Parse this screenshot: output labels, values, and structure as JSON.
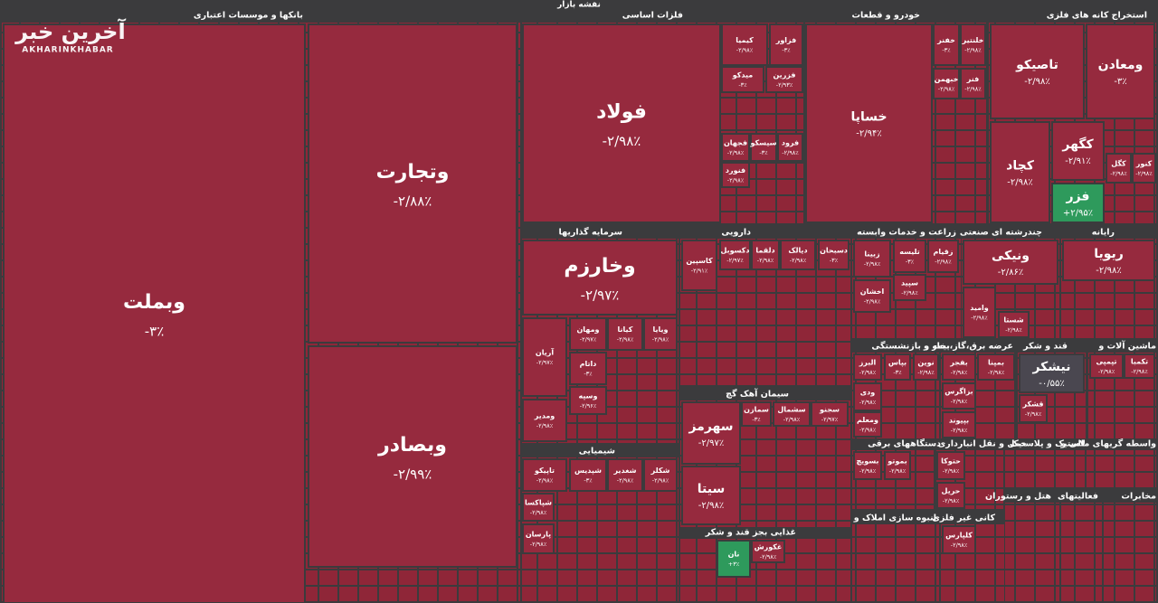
{
  "title": "نقشه بازار",
  "watermark": {
    "name": "آخرین خبر",
    "latin": "AKHARINKHABAR"
  },
  "sectors": [
    {
      "name": "بانکها و موسسات اعتباری",
      "tiles": [
        {
          "name": "وبملت",
          "change": "-۳٪"
        },
        {
          "name": "وتجارت",
          "change": "-۲/۸۸٪"
        },
        {
          "name": "وبصادر",
          "change": "-۲/۹۹٪"
        }
      ]
    },
    {
      "name": "فلزات اساسی",
      "tiles": [
        {
          "name": "فولاد",
          "change": "-۲/۹۸٪"
        },
        {
          "name": "کیمیا",
          "change": "-۲/۹۸٪"
        },
        {
          "name": "فزاور",
          "change": "-۳٪"
        },
        {
          "name": "میدکو",
          "change": "-۳٪"
        },
        {
          "name": "فزرین",
          "change": "-۲/۹۳٪"
        },
        {
          "name": "فجهان",
          "change": "-۲/۹۸٪"
        },
        {
          "name": "سیسکو",
          "change": "-۳٪"
        },
        {
          "name": "فرود",
          "change": "-۲/۹۸٪"
        },
        {
          "name": "فنورد",
          "change": "-۲/۹۸٪"
        }
      ]
    },
    {
      "name": "خودرو و قطعات",
      "tiles": [
        {
          "name": "خساپا",
          "change": "-۲/۹۴٪"
        },
        {
          "name": "خفنر",
          "change": "-۳٪"
        },
        {
          "name": "خلنتیر",
          "change": "-۲/۹۸٪"
        },
        {
          "name": "خبهمن",
          "change": "-۲/۹۸٪"
        },
        {
          "name": "فنر",
          "change": "-۲/۹۸٪"
        }
      ]
    },
    {
      "name": "استخراج کانه های فلزی",
      "tiles": [
        {
          "name": "تاصیکو",
          "change": "-۲/۹۸٪"
        },
        {
          "name": "ومعادن",
          "change": "-۳٪"
        },
        {
          "name": "کچاد",
          "change": "-۲/۹۸٪"
        },
        {
          "name": "کگهر",
          "change": "-۲/۹۱٪"
        },
        {
          "name": "فزر",
          "change": "+۲/۹۵٪",
          "color": "#2e9a5c"
        },
        {
          "name": "کگل",
          "change": "-۲/۹۸٪"
        },
        {
          "name": "کنور",
          "change": "-۲/۹۸٪"
        }
      ]
    },
    {
      "name": "سرمایه گذاریها",
      "tiles": [
        {
          "name": "وخارزم",
          "change": "-۲/۹۷٪"
        },
        {
          "name": "آریان",
          "change": "-۲/۹۷٪"
        },
        {
          "name": "ومهان",
          "change": "-۲/۹۷٪"
        },
        {
          "name": "کیانا",
          "change": "-۲/۹۸٪"
        },
        {
          "name": "ویایا",
          "change": "-۲/۹۸٪"
        },
        {
          "name": "داتام",
          "change": "-۳٪"
        },
        {
          "name": "وسپه",
          "change": "-۲/۹۶٪"
        },
        {
          "name": "ومدیر",
          "change": "-۲/۹۸٪"
        }
      ]
    },
    {
      "name": "دارویی",
      "tiles": [
        {
          "name": "کاسپین",
          "change": "-۲/۹۱٪"
        },
        {
          "name": "دکسوبل",
          "change": "-۲/۹۷٪"
        },
        {
          "name": "دلقما",
          "change": "-۲/۹۸٪"
        },
        {
          "name": "دیالک",
          "change": "-۲/۹۸٪"
        },
        {
          "name": "دسبحان",
          "change": "-۳٪"
        }
      ]
    },
    {
      "name": "زراعت و خدمات وابسته",
      "tiles": [
        {
          "name": "زبینا",
          "change": "-۲/۹۸٪"
        },
        {
          "name": "تلیسه",
          "change": "-۳٪"
        },
        {
          "name": "زقیام",
          "change": "-۲/۹۸٪"
        },
        {
          "name": "اخشان",
          "change": "-۲/۹۸٪"
        },
        {
          "name": "سپید",
          "change": "-۲/۹۸٪"
        }
      ]
    },
    {
      "name": "چندرشته ای صنعتی",
      "tiles": [
        {
          "name": "ونیکی",
          "change": "-۲/۸۶٪"
        },
        {
          "name": "وامید",
          "change": "-۲/۹۸٪"
        },
        {
          "name": "شستا",
          "change": "-۲/۹۸٪"
        }
      ]
    },
    {
      "name": "رایانه",
      "tiles": [
        {
          "name": "ریویا",
          "change": "-۲/۹۸٪"
        }
      ]
    },
    {
      "name": "سیمان آهک گچ",
      "tiles": [
        {
          "name": "سهرمز",
          "change": "-۲/۹۷٪"
        },
        {
          "name": "سیتا",
          "change": "-۲/۹۸٪"
        },
        {
          "name": "سمازن",
          "change": "-۳٪"
        },
        {
          "name": "سشمال",
          "change": "-۲/۹۸٪"
        },
        {
          "name": "سجنو",
          "change": "-۲/۹۷٪"
        }
      ]
    },
    {
      "name": "شیمیایی",
      "tiles": [
        {
          "name": "تاپیکو",
          "change": "-۲/۹۸٪"
        },
        {
          "name": "شپدیس",
          "change": "-۳٪"
        },
        {
          "name": "شغدیر",
          "change": "-۲/۹۸٪"
        },
        {
          "name": "شکلر",
          "change": "-۲/۹۸٪"
        },
        {
          "name": "شپاکسا",
          "change": "-۲/۹۸٪"
        },
        {
          "name": "پارسان",
          "change": "-۲/۹۸٪"
        }
      ]
    },
    {
      "name": "غذایی بجز قند و شکر",
      "tiles": [
        {
          "name": "نان",
          "change": "+۳٪",
          "color": "#2e9a5c"
        },
        {
          "name": "غکورش",
          "change": "-۲/۹۸٪"
        }
      ]
    },
    {
      "name": "بیمه و بازنشستگی",
      "tiles": [
        {
          "name": "البرز",
          "change": "-۲/۹۸٪"
        },
        {
          "name": "بپاس",
          "change": "-۳٪"
        },
        {
          "name": "نوین",
          "change": "-۲/۹۸٪"
        },
        {
          "name": "ودی",
          "change": "-۲/۹۸٪"
        },
        {
          "name": "ومعلم",
          "change": "-۲/۹۸٪"
        }
      ]
    },
    {
      "name": "عرضه برق،گاز،بخار و",
      "tiles": [
        {
          "name": "بفجر",
          "change": "-۲/۹۸٪"
        },
        {
          "name": "بمپنا",
          "change": "-۲/۹۸٪"
        },
        {
          "name": "بزاگرس",
          "change": "-۲/۹۸٪"
        },
        {
          "name": "بپیوند",
          "change": "-۲/۹۸٪"
        }
      ]
    },
    {
      "name": "قند و شکر",
      "tiles": [
        {
          "name": "نیشکر",
          "change": "-۰/۵۵٪",
          "color": "#4a4750"
        },
        {
          "name": "قشکر",
          "change": "-۲/۹۸٪"
        }
      ]
    },
    {
      "name": "ماشین آلات و",
      "tiles": [
        {
          "name": "تپمپی",
          "change": "-۲/۹۸٪"
        },
        {
          "name": "تکمبا",
          "change": "-۲/۹۸٪"
        }
      ]
    },
    {
      "name": "دستگاههای برقی",
      "tiles": [
        {
          "name": "بسویچ",
          "change": "-۲/۹۸٪"
        },
        {
          "name": "بموتو",
          "change": "-۲/۹۸٪"
        }
      ]
    },
    {
      "name": "حمل و نقل انبارداری",
      "tiles": [
        {
          "name": "حتوکا",
          "change": "-۲/۹۸٪"
        },
        {
          "name": "حریل",
          "change": "-۲/۹۸٪"
        }
      ]
    },
    {
      "name": "لاستیک و پلاستیک",
      "tiles": []
    },
    {
      "name": "واسطه گریهای مالی و",
      "tiles": []
    },
    {
      "name": "کانی غیر فلزی",
      "tiles": [
        {
          "name": "کلپارس",
          "change": "-۲/۹۸٪"
        }
      ]
    },
    {
      "name": "انبوه سازی املاک و",
      "tiles": []
    },
    {
      "name": "هتل و رستوران",
      "tiles": []
    },
    {
      "name": "فعالیتهای",
      "tiles": []
    },
    {
      "name": "مخابرات",
      "tiles": []
    }
  ]
}
